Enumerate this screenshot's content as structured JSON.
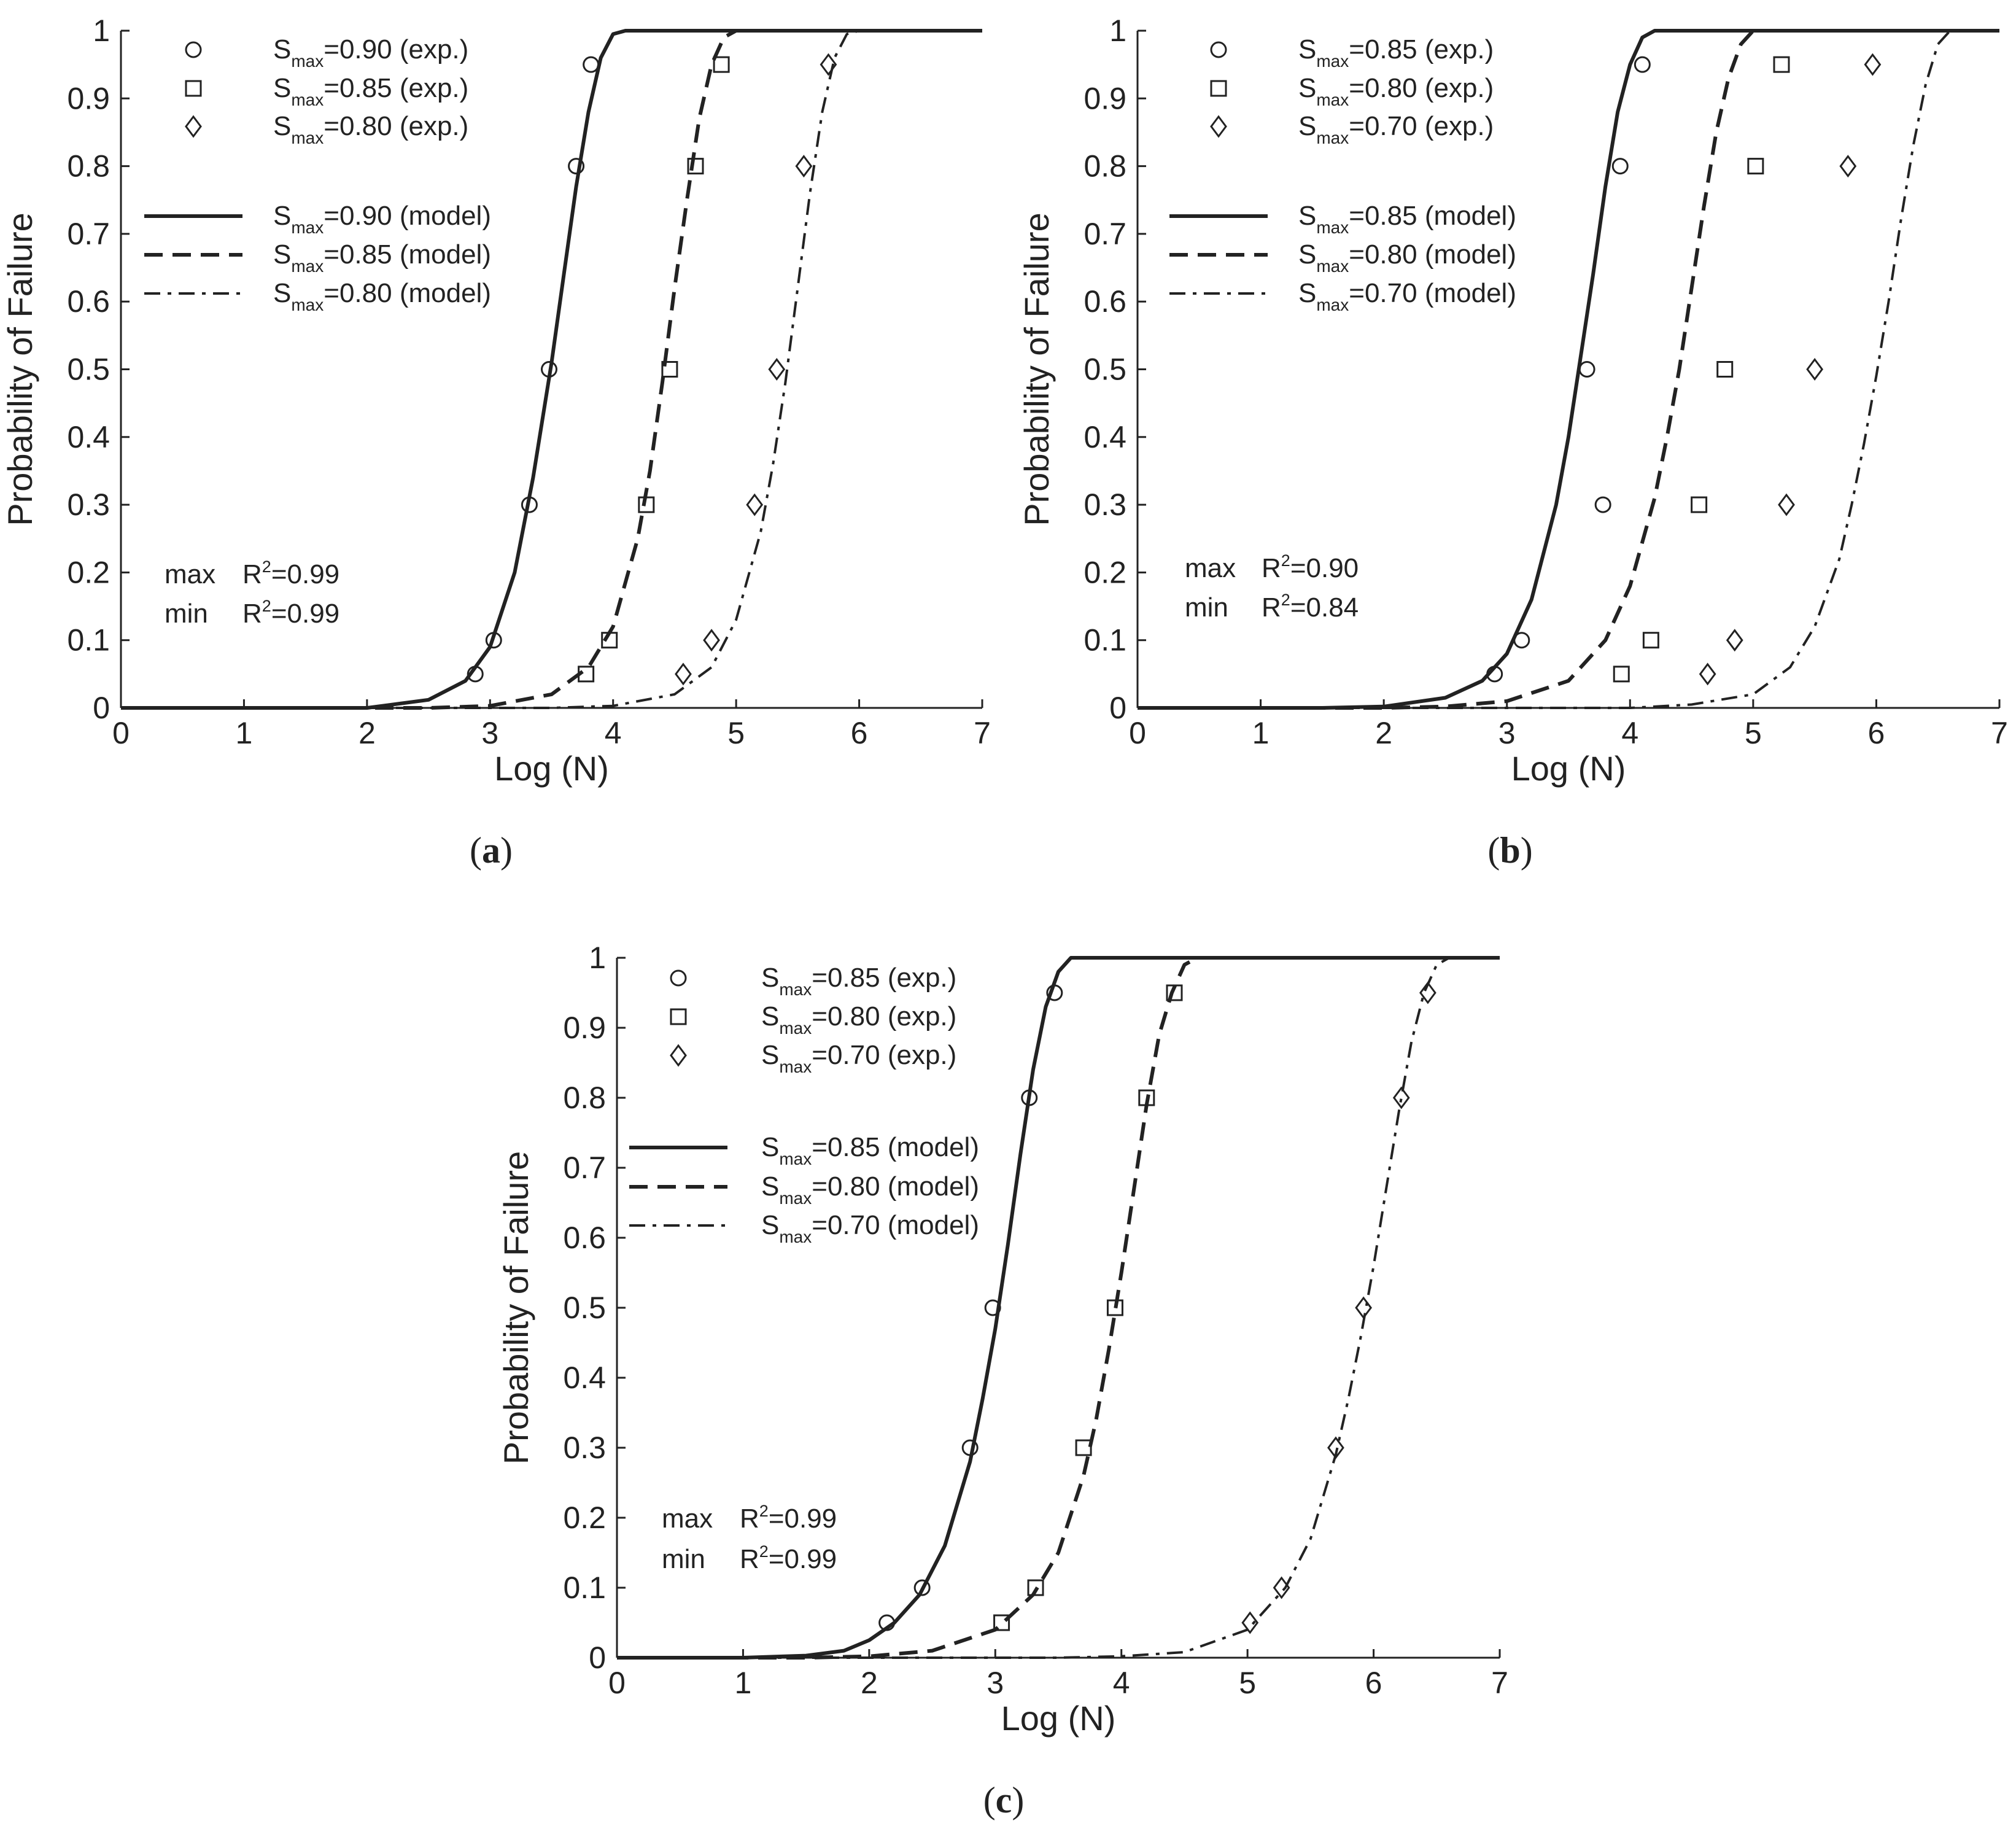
{
  "chart_data": [
    {
      "type": "line",
      "panel": "a",
      "caption_letter": "a",
      "xlabel": "Log (N)",
      "ylabel": "Probability of Failure",
      "xlim": [
        0,
        7
      ],
      "ylim": [
        0,
        1
      ],
      "xticks": [
        "0",
        "1",
        "2",
        "3",
        "4",
        "5",
        "6",
        "7"
      ],
      "yticks": [
        "0",
        "0.1",
        "0.2",
        "0.3",
        "0.4",
        "0.5",
        "0.6",
        "0.7",
        "0.8",
        "0.9",
        "1"
      ],
      "grid": false,
      "legend_position": "top-left",
      "stats": [
        {
          "label": "max",
          "r2": "0.99"
        },
        {
          "label": "min",
          "r2": "0.99"
        }
      ],
      "series": [
        {
          "name": "Smax=0.90 (exp.)",
          "legend_main": "S",
          "legend_sub": "max",
          "legend_rest": "=0.90 (exp.)",
          "kind": "scatter",
          "marker": "circle",
          "x": [
            2.88,
            3.03,
            3.32,
            3.48,
            3.7,
            3.82
          ],
          "y": [
            0.05,
            0.1,
            0.3,
            0.5,
            0.8,
            0.95
          ]
        },
        {
          "name": "Smax=0.85 (exp.)",
          "legend_main": "S",
          "legend_sub": "max",
          "legend_rest": "=0.85 (exp.)",
          "kind": "scatter",
          "marker": "square",
          "x": [
            3.78,
            3.97,
            4.27,
            4.46,
            4.67,
            4.88
          ],
          "y": [
            0.05,
            0.1,
            0.3,
            0.5,
            0.8,
            0.95
          ]
        },
        {
          "name": "Smax=0.80 (exp.)",
          "legend_main": "S",
          "legend_sub": "max",
          "legend_rest": "=0.80 (exp.)",
          "kind": "scatter",
          "marker": "diamond",
          "x": [
            4.57,
            4.8,
            5.15,
            5.33,
            5.55,
            5.75
          ],
          "y": [
            0.05,
            0.1,
            0.3,
            0.5,
            0.8,
            0.95
          ]
        },
        {
          "name": "Smax=0.90 (model)",
          "legend_main": "S",
          "legend_sub": "max",
          "legend_rest": "=0.90 (model)",
          "kind": "line",
          "dash": "solid",
          "x": [
            0,
            1.5,
            2.0,
            2.5,
            2.8,
            3.0,
            3.2,
            3.35,
            3.5,
            3.6,
            3.7,
            3.8,
            3.9,
            4.0,
            4.1,
            4.3,
            7.0
          ],
          "y": [
            0,
            0,
            0.0,
            0.012,
            0.04,
            0.09,
            0.2,
            0.34,
            0.51,
            0.64,
            0.77,
            0.88,
            0.96,
            0.995,
            1,
            1,
            1
          ]
        },
        {
          "name": "Smax=0.85 (model)",
          "legend_main": "S",
          "legend_sub": "max",
          "legend_rest": "=0.85 (model)",
          "kind": "line",
          "dash": "dashed",
          "x": [
            0,
            2.5,
            3.0,
            3.5,
            3.8,
            4.0,
            4.2,
            4.3,
            4.4,
            4.5,
            4.6,
            4.7,
            4.8,
            4.9,
            5.0,
            5.3,
            7.0
          ],
          "y": [
            0,
            0,
            0.003,
            0.02,
            0.06,
            0.12,
            0.25,
            0.35,
            0.48,
            0.62,
            0.75,
            0.87,
            0.95,
            0.99,
            1,
            1,
            1
          ]
        },
        {
          "name": "Smax=0.80 (model)",
          "legend_main": "S",
          "legend_sub": "max",
          "legend_rest": "=0.80 (model)",
          "kind": "line",
          "dash": "dashdot",
          "x": [
            0,
            3.5,
            4.0,
            4.5,
            4.8,
            5.0,
            5.2,
            5.3,
            5.4,
            5.5,
            5.6,
            5.7,
            5.8,
            5.9,
            6.0,
            6.3,
            7.0
          ],
          "y": [
            0,
            0,
            0.003,
            0.02,
            0.06,
            0.13,
            0.26,
            0.36,
            0.48,
            0.62,
            0.76,
            0.88,
            0.96,
            0.995,
            1,
            1,
            1
          ]
        }
      ]
    },
    {
      "type": "line",
      "panel": "b",
      "caption_letter": "b",
      "xlabel": "Log (N)",
      "ylabel": "Probability of Failure",
      "xlim": [
        0,
        7
      ],
      "ylim": [
        0,
        1
      ],
      "xticks": [
        "0",
        "1",
        "2",
        "3",
        "4",
        "5",
        "6",
        "7"
      ],
      "yticks": [
        "0",
        "0.1",
        "0.2",
        "0.3",
        "0.4",
        "0.5",
        "0.6",
        "0.7",
        "0.8",
        "0.9",
        "1"
      ],
      "grid": false,
      "legend_position": "top-left",
      "stats": [
        {
          "label": "max",
          "r2": "0.90"
        },
        {
          "label": "min",
          "r2": "0.84"
        }
      ],
      "series": [
        {
          "name": "Smax=0.85 (exp.)",
          "legend_main": "S",
          "legend_sub": "max",
          "legend_rest": "=0.85 (exp.)",
          "kind": "scatter",
          "marker": "circle",
          "x": [
            2.9,
            3.12,
            3.78,
            3.65,
            3.92,
            4.1
          ],
          "y": [
            0.05,
            0.1,
            0.3,
            0.5,
            0.8,
            0.95
          ]
        },
        {
          "name": "Smax=0.80 (exp.)",
          "legend_main": "S",
          "legend_sub": "max",
          "legend_rest": "=0.80 (exp.)",
          "kind": "scatter",
          "marker": "square",
          "x": [
            3.93,
            4.17,
            4.56,
            4.77,
            5.02,
            5.23
          ],
          "y": [
            0.05,
            0.1,
            0.3,
            0.5,
            0.8,
            0.95
          ]
        },
        {
          "name": "Smax=0.70 (exp.)",
          "legend_main": "S",
          "legend_sub": "max",
          "legend_rest": "=0.70 (exp.)",
          "kind": "scatter",
          "marker": "diamond",
          "x": [
            4.63,
            4.85,
            5.27,
            5.5,
            5.77,
            5.97
          ],
          "y": [
            0.05,
            0.1,
            0.3,
            0.5,
            0.8,
            0.95
          ]
        },
        {
          "name": "Smax=0.85 (model)",
          "legend_main": "S",
          "legend_sub": "max",
          "legend_rest": "=0.85 (model)",
          "kind": "line",
          "dash": "solid",
          "x": [
            0,
            1.5,
            2.0,
            2.5,
            2.8,
            3.0,
            3.2,
            3.4,
            3.5,
            3.6,
            3.7,
            3.8,
            3.9,
            4.0,
            4.1,
            4.2,
            4.4,
            7.0
          ],
          "y": [
            0,
            0,
            0.002,
            0.015,
            0.04,
            0.08,
            0.16,
            0.3,
            0.4,
            0.52,
            0.64,
            0.77,
            0.88,
            0.95,
            0.99,
            1,
            1,
            1
          ]
        },
        {
          "name": "Smax=0.80 (model)",
          "legend_main": "S",
          "legend_sub": "max",
          "legend_rest": "=0.80 (model)",
          "kind": "line",
          "dash": "dashed",
          "x": [
            0,
            2.0,
            2.5,
            3.0,
            3.5,
            3.8,
            4.0,
            4.2,
            4.3,
            4.4,
            4.5,
            4.6,
            4.7,
            4.8,
            4.9,
            5.0,
            5.2,
            7.0
          ],
          "y": [
            0,
            0,
            0.002,
            0.01,
            0.04,
            0.1,
            0.18,
            0.31,
            0.4,
            0.5,
            0.62,
            0.74,
            0.85,
            0.93,
            0.98,
            1,
            1,
            1
          ]
        },
        {
          "name": "Smax=0.70 (model)",
          "legend_main": "S",
          "legend_sub": "max",
          "legend_rest": "=0.70 (model)",
          "kind": "line",
          "dash": "dashdot",
          "x": [
            0,
            4.0,
            4.5,
            5.0,
            5.3,
            5.5,
            5.7,
            5.8,
            5.9,
            6.0,
            6.1,
            6.2,
            6.3,
            6.4,
            6.5,
            6.6,
            6.8,
            7.0
          ],
          "y": [
            0,
            0,
            0.005,
            0.02,
            0.06,
            0.12,
            0.22,
            0.3,
            0.39,
            0.49,
            0.6,
            0.72,
            0.83,
            0.92,
            0.98,
            1,
            1,
            1
          ]
        }
      ]
    },
    {
      "type": "line",
      "panel": "c",
      "caption_letter": "c",
      "xlabel": "Log (N)",
      "ylabel": "Probability of Failure",
      "xlim": [
        0,
        7
      ],
      "ylim": [
        0,
        1
      ],
      "xticks": [
        "0",
        "1",
        "2",
        "3",
        "4",
        "5",
        "6",
        "7"
      ],
      "yticks": [
        "0",
        "0.1",
        "0.2",
        "0.3",
        "0.4",
        "0.5",
        "0.6",
        "0.7",
        "0.8",
        "0.9",
        "1"
      ],
      "grid": false,
      "legend_position": "top-left",
      "stats": [
        {
          "label": "max",
          "r2": "0.99"
        },
        {
          "label": "min",
          "r2": "0.99"
        }
      ],
      "series": [
        {
          "name": "Smax=0.85 (exp.)",
          "legend_main": "S",
          "legend_sub": "max",
          "legend_rest": "=0.85 (exp.)",
          "kind": "scatter",
          "marker": "circle",
          "x": [
            2.14,
            2.42,
            2.8,
            2.98,
            3.27,
            3.47
          ],
          "y": [
            0.05,
            0.1,
            0.3,
            0.5,
            0.8,
            0.95
          ]
        },
        {
          "name": "Smax=0.80 (exp.)",
          "legend_main": "S",
          "legend_sub": "max",
          "legend_rest": "=0.80 (exp.)",
          "kind": "scatter",
          "marker": "square",
          "x": [
            3.05,
            3.32,
            3.7,
            3.95,
            4.2,
            4.42
          ],
          "y": [
            0.05,
            0.1,
            0.3,
            0.5,
            0.8,
            0.95
          ]
        },
        {
          "name": "Smax=0.70 (exp.)",
          "legend_main": "S",
          "legend_sub": "max",
          "legend_rest": "=0.70 (exp.)",
          "kind": "scatter",
          "marker": "diamond",
          "x": [
            5.02,
            5.27,
            5.7,
            5.92,
            6.22,
            6.43
          ],
          "y": [
            0.05,
            0.1,
            0.3,
            0.5,
            0.8,
            0.95
          ]
        },
        {
          "name": "Smax=0.85 (model)",
          "legend_main": "S",
          "legend_sub": "max",
          "legend_rest": "=0.85 (model)",
          "kind": "line",
          "dash": "solid",
          "x": [
            0,
            1.0,
            1.5,
            1.8,
            2.0,
            2.2,
            2.4,
            2.6,
            2.8,
            2.9,
            3.0,
            3.1,
            3.2,
            3.3,
            3.4,
            3.5,
            3.6,
            3.7,
            4.0,
            7.0
          ],
          "y": [
            0,
            0,
            0.003,
            0.01,
            0.025,
            0.05,
            0.09,
            0.16,
            0.28,
            0.37,
            0.47,
            0.59,
            0.72,
            0.84,
            0.93,
            0.98,
            1,
            1,
            1,
            1
          ]
        },
        {
          "name": "Smax=0.80 (model)",
          "legend_main": "S",
          "legend_sub": "max",
          "legend_rest": "=0.80 (model)",
          "kind": "line",
          "dash": "dashed",
          "x": [
            0,
            1.5,
            2.0,
            2.5,
            3.0,
            3.3,
            3.5,
            3.7,
            3.8,
            3.9,
            4.0,
            4.1,
            4.2,
            4.3,
            4.4,
            4.5,
            4.6,
            4.8,
            7.0
          ],
          "y": [
            0,
            0,
            0.002,
            0.01,
            0.04,
            0.09,
            0.15,
            0.26,
            0.34,
            0.44,
            0.55,
            0.67,
            0.79,
            0.89,
            0.95,
            0.99,
            1,
            1,
            1
          ]
        },
        {
          "name": "Smax=0.70 (model)",
          "legend_main": "S",
          "legend_sub": "max",
          "legend_rest": "=0.70 (model)",
          "kind": "line",
          "dash": "dashdot",
          "x": [
            0,
            3.5,
            4.0,
            4.5,
            5.0,
            5.3,
            5.5,
            5.7,
            5.8,
            5.9,
            6.0,
            6.1,
            6.2,
            6.3,
            6.4,
            6.5,
            6.6,
            6.7,
            7.0
          ],
          "y": [
            0,
            0,
            0.002,
            0.008,
            0.04,
            0.1,
            0.17,
            0.29,
            0.37,
            0.46,
            0.56,
            0.67,
            0.78,
            0.88,
            0.95,
            0.99,
            1,
            1,
            1
          ]
        }
      ]
    }
  ]
}
